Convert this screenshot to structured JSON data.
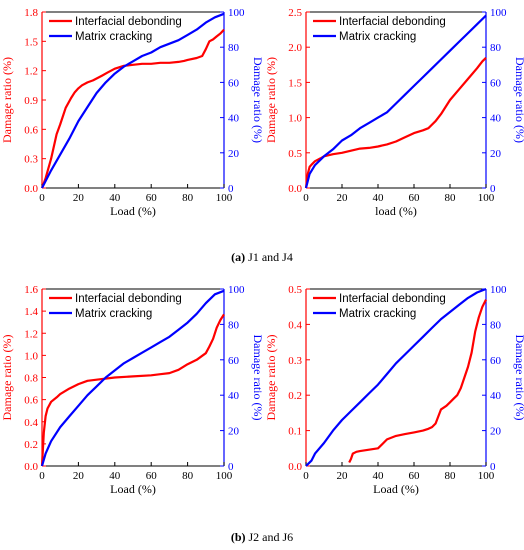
{
  "captions": [
    {
      "letter": "(a)",
      "text": " J1 and J4"
    },
    {
      "letter": "(b)",
      "text": " J2 and J6"
    }
  ],
  "colors": {
    "left_axis": "#ff0000",
    "right_axis": "#0000ff",
    "frame": "#000000"
  },
  "chart_data": [
    {
      "type": "line",
      "xlabel": "Load (%)",
      "ylabel_left": "Damage ratio (%)",
      "ylabel_right": "Damage ratio (%)",
      "xlim": [
        0,
        100
      ],
      "xticks": [
        0,
        20,
        40,
        60,
        80,
        100
      ],
      "ylim_left": [
        0,
        1.8
      ],
      "yticks_left": [
        "0.0",
        "0.3",
        "0.6",
        "0.9",
        "1.2",
        "1.5",
        "1.8"
      ],
      "ylim_right": [
        0,
        100
      ],
      "yticks_right": [
        0,
        20,
        40,
        60,
        80,
        100
      ],
      "legend": "top-left",
      "series": [
        {
          "name": "Interfacial debonding",
          "axis": "left",
          "color": "#ff0000",
          "x": [
            0,
            2,
            5,
            8,
            10,
            13,
            16,
            18,
            20,
            22,
            25,
            28,
            30,
            33,
            36,
            40,
            45,
            50,
            55,
            60,
            65,
            70,
            75,
            78,
            80,
            85,
            88,
            90,
            92,
            94,
            96,
            98,
            100
          ],
          "y": [
            0,
            0.1,
            0.3,
            0.55,
            0.65,
            0.82,
            0.92,
            0.98,
            1.02,
            1.05,
            1.08,
            1.1,
            1.12,
            1.15,
            1.18,
            1.22,
            1.25,
            1.26,
            1.27,
            1.27,
            1.28,
            1.28,
            1.29,
            1.3,
            1.31,
            1.33,
            1.35,
            1.42,
            1.5,
            1.52,
            1.55,
            1.58,
            1.62
          ]
        },
        {
          "name": "Matrix cracking",
          "axis": "right",
          "color": "#0000ff",
          "x": [
            0,
            5,
            10,
            15,
            20,
            25,
            30,
            35,
            40,
            45,
            50,
            55,
            60,
            65,
            70,
            75,
            80,
            85,
            90,
            95,
            100
          ],
          "y": [
            0,
            10,
            19,
            28,
            38,
            46,
            54,
            60,
            65,
            69,
            72,
            75,
            77,
            80,
            82,
            84,
            87,
            90,
            94,
            97,
            99
          ]
        }
      ]
    },
    {
      "type": "line",
      "xlabel": "load (%)",
      "ylabel_left": "Damage ratio (%)",
      "ylabel_right": "Damage ratio (%)",
      "xlim": [
        0,
        100
      ],
      "xticks": [
        0,
        20,
        40,
        60,
        80,
        100
      ],
      "ylim_left": [
        0,
        2.5
      ],
      "yticks_left": [
        "0.0",
        "0.5",
        "1.0",
        "1.5",
        "2.0",
        "2.5"
      ],
      "ylim_right": [
        0,
        100
      ],
      "yticks_right": [
        0,
        20,
        40,
        60,
        80,
        100
      ],
      "legend": "top-left",
      "series": [
        {
          "name": "Interfacial debonding",
          "axis": "left",
          "color": "#ff0000",
          "x": [
            0,
            1,
            2,
            3,
            5,
            8,
            10,
            15,
            20,
            25,
            30,
            35,
            40,
            45,
            50,
            55,
            60,
            65,
            68,
            70,
            72,
            75,
            80,
            85,
            90,
            95,
            98,
            100
          ],
          "y": [
            0,
            0.2,
            0.3,
            0.33,
            0.38,
            0.42,
            0.45,
            0.48,
            0.5,
            0.53,
            0.56,
            0.57,
            0.59,
            0.62,
            0.66,
            0.72,
            0.78,
            0.82,
            0.85,
            0.9,
            0.95,
            1.05,
            1.25,
            1.4,
            1.55,
            1.7,
            1.8,
            1.85
          ]
        },
        {
          "name": "Matrix cracking",
          "axis": "right",
          "color": "#0000ff",
          "x": [
            0,
            2,
            5,
            10,
            15,
            20,
            25,
            30,
            35,
            40,
            45,
            50,
            55,
            60,
            65,
            70,
            75,
            80,
            85,
            90,
            95,
            100
          ],
          "y": [
            0,
            8,
            13,
            18,
            22,
            27,
            30,
            34,
            37,
            40,
            43,
            48,
            53,
            58,
            63,
            68,
            73,
            78,
            83,
            88,
            93,
            98
          ]
        }
      ]
    },
    {
      "type": "line",
      "xlabel": "Load (%)",
      "ylabel_left": "Damage ratio (%)",
      "ylabel_right": "Damage ratio (%)",
      "xlim": [
        0,
        100
      ],
      "xticks": [
        0,
        20,
        40,
        60,
        80,
        100
      ],
      "ylim_left": [
        0,
        1.6
      ],
      "yticks_left": [
        "0.0",
        "0.2",
        "0.4",
        "0.6",
        "0.8",
        "1.0",
        "1.2",
        "1.4",
        "1.6"
      ],
      "ylim_right": [
        0,
        100
      ],
      "yticks_right": [
        0,
        20,
        40,
        60,
        80,
        100
      ],
      "legend": "top-left",
      "series": [
        {
          "name": "Interfacial debonding",
          "axis": "left",
          "color": "#ff0000",
          "x": [
            0,
            1,
            2,
            3,
            5,
            8,
            10,
            15,
            20,
            25,
            30,
            40,
            50,
            60,
            65,
            70,
            75,
            80,
            85,
            90,
            92,
            94,
            96,
            98,
            100
          ],
          "y": [
            0,
            0.3,
            0.45,
            0.52,
            0.58,
            0.62,
            0.65,
            0.7,
            0.74,
            0.77,
            0.78,
            0.8,
            0.81,
            0.82,
            0.83,
            0.84,
            0.87,
            0.92,
            0.96,
            1.02,
            1.08,
            1.15,
            1.25,
            1.32,
            1.37
          ]
        },
        {
          "name": "Matrix cracking",
          "axis": "right",
          "color": "#0000ff",
          "x": [
            0,
            2,
            5,
            10,
            15,
            20,
            25,
            30,
            35,
            40,
            45,
            50,
            55,
            60,
            65,
            70,
            75,
            80,
            85,
            90,
            95,
            100
          ],
          "y": [
            0,
            7,
            14,
            22,
            28,
            34,
            40,
            45,
            50,
            54,
            58,
            61,
            64,
            67,
            70,
            73,
            77,
            81,
            86,
            92,
            97,
            99
          ]
        }
      ]
    },
    {
      "type": "line",
      "xlabel": "Load (%)",
      "ylabel_left": "Damage ratio (%)",
      "ylabel_right": "Damage ratio (%)",
      "xlim": [
        0,
        100
      ],
      "xticks": [
        0,
        20,
        40,
        60,
        80,
        100
      ],
      "ylim_left": [
        0,
        0.5
      ],
      "yticks_left": [
        "0.0",
        "0.1",
        "0.2",
        "0.3",
        "0.4",
        "0.5"
      ],
      "ylim_right": [
        0,
        100
      ],
      "yticks_right": [
        0,
        20,
        40,
        60,
        80,
        100
      ],
      "legend": "top-left",
      "series": [
        {
          "name": "Interfacial debonding",
          "axis": "left",
          "color": "#ff0000",
          "x": [
            24,
            25,
            26,
            28,
            30,
            35,
            40,
            42,
            45,
            50,
            55,
            60,
            65,
            68,
            70,
            72,
            75,
            78,
            80,
            82,
            84,
            86,
            88,
            90,
            92,
            94,
            96,
            98,
            100
          ],
          "y": [
            0.01,
            0.02,
            0.035,
            0.04,
            0.042,
            0.046,
            0.05,
            0.06,
            0.075,
            0.085,
            0.09,
            0.095,
            0.1,
            0.105,
            0.11,
            0.12,
            0.16,
            0.17,
            0.18,
            0.19,
            0.2,
            0.22,
            0.25,
            0.28,
            0.32,
            0.38,
            0.42,
            0.45,
            0.47
          ]
        },
        {
          "name": "Matrix cracking",
          "axis": "right",
          "color": "#0000ff",
          "x": [
            0,
            3,
            5,
            10,
            15,
            20,
            25,
            30,
            35,
            40,
            45,
            50,
            55,
            60,
            65,
            70,
            75,
            80,
            85,
            90,
            95,
            100
          ],
          "y": [
            0,
            3,
            7,
            13,
            20,
            26,
            31,
            36,
            41,
            46,
            52,
            58,
            63,
            68,
            73,
            78,
            83,
            87,
            91,
            95,
            98,
            100
          ]
        }
      ]
    }
  ]
}
